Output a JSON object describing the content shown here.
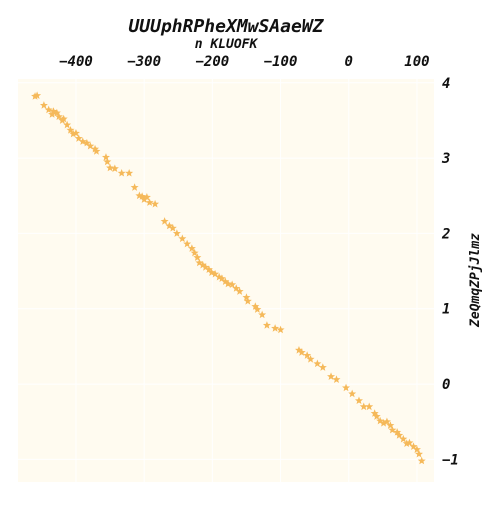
{
  "chart_data": {
    "type": "scatter",
    "title": "UUUphRPheXMwSAaeWZ",
    "xlabel": "n KLUOFK",
    "ylabel": "ZeQmqZPjJlmz",
    "x_axis_position": "top",
    "y_axis_position": "right",
    "xlim": [
      -485,
      125
    ],
    "ylim": [
      -1.3,
      4.05
    ],
    "xticks": [
      -400,
      -300,
      -200,
      -100,
      0,
      100
    ],
    "xtick_labels": [
      "−400",
      "−300",
      "−200",
      "−100",
      "0",
      "100"
    ],
    "yticks": [
      4,
      3,
      2,
      1,
      0,
      -1
    ],
    "ytick_labels": [
      "4",
      "3",
      "2",
      "1",
      "0",
      "−1"
    ],
    "grid": true,
    "marker": "star",
    "colors": {
      "plot_background": "#fffbf0",
      "marker": "#f5b95a",
      "grid": "#ffffff"
    },
    "series": [
      {
        "x": [
          -460,
          -457,
          -447,
          -440,
          -435,
          -433,
          -428,
          -425,
          -420,
          -418,
          -413,
          -408,
          -404,
          -400,
          -396,
          -390,
          -384,
          -379,
          -372,
          -370,
          -356,
          -354,
          -350,
          -343,
          -333,
          -322,
          -314,
          -307,
          -303,
          -300,
          -296,
          -292,
          -284,
          -270,
          -263,
          -258,
          -252,
          -244,
          -237,
          -230,
          -226,
          -222,
          -219,
          -214,
          -210,
          -205,
          -201,
          -196,
          -190,
          -186,
          -181,
          -177,
          -171,
          -165,
          -160,
          -150,
          -148,
          -137,
          -134,
          -127,
          -120,
          -108,
          -100,
          -73,
          -69,
          -61,
          -56,
          -46,
          -38,
          -26,
          -18,
          -4,
          5,
          15,
          22,
          30,
          38,
          41,
          46,
          51,
          56,
          61,
          64,
          71,
          74,
          80,
          85,
          89,
          95,
          100,
          103,
          107
        ],
        "y": [
          3.82,
          3.83,
          3.7,
          3.64,
          3.58,
          3.62,
          3.6,
          3.55,
          3.5,
          3.52,
          3.44,
          3.37,
          3.32,
          3.33,
          3.26,
          3.22,
          3.2,
          3.16,
          3.12,
          3.09,
          3.01,
          2.95,
          2.87,
          2.86,
          2.8,
          2.8,
          2.61,
          2.5,
          2.49,
          2.45,
          2.48,
          2.41,
          2.39,
          2.16,
          2.1,
          2.07,
          2.0,
          1.93,
          1.86,
          1.8,
          1.74,
          1.68,
          1.61,
          1.58,
          1.55,
          1.52,
          1.48,
          1.46,
          1.42,
          1.4,
          1.36,
          1.33,
          1.32,
          1.27,
          1.23,
          1.15,
          1.1,
          1.03,
          0.99,
          0.92,
          0.78,
          0.74,
          0.72,
          0.45,
          0.42,
          0.38,
          0.33,
          0.27,
          0.22,
          0.1,
          0.06,
          -0.05,
          -0.13,
          -0.22,
          -0.3,
          -0.3,
          -0.39,
          -0.43,
          -0.49,
          -0.52,
          -0.5,
          -0.55,
          -0.61,
          -0.64,
          -0.68,
          -0.73,
          -0.79,
          -0.78,
          -0.83,
          -0.87,
          -0.93,
          -1.02
        ]
      }
    ]
  }
}
